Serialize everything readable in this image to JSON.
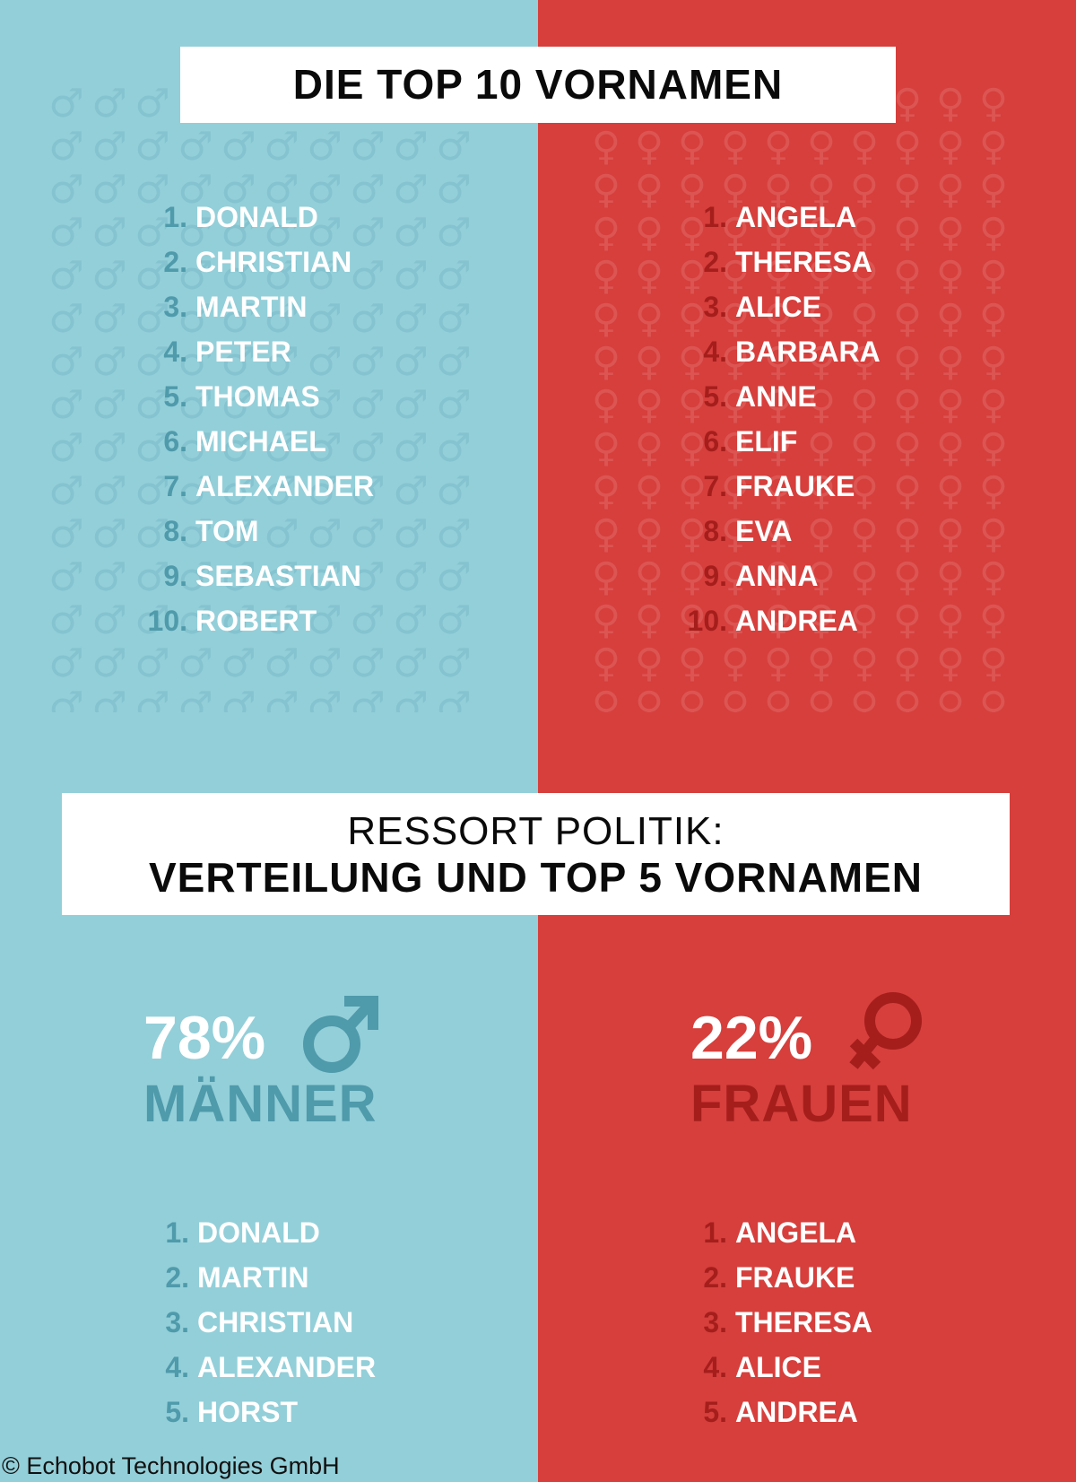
{
  "colors": {
    "male_bg": "#93cfd9",
    "female_bg": "#d63f3c",
    "male_accent": "#4f9aab",
    "female_accent": "#a51e1c"
  },
  "icons": {
    "male": "male-symbol-icon",
    "female": "female-symbol-icon"
  },
  "top10": {
    "title": "DIE TOP 10 VORNAMEN",
    "male": [
      {
        "num": "1.",
        "name": "DONALD"
      },
      {
        "num": "2.",
        "name": "CHRISTIAN"
      },
      {
        "num": "3.",
        "name": "MARTIN"
      },
      {
        "num": "4.",
        "name": "PETER"
      },
      {
        "num": "5.",
        "name": "THOMAS"
      },
      {
        "num": "6.",
        "name": "MICHAEL"
      },
      {
        "num": "7.",
        "name": "ALEXANDER"
      },
      {
        "num": "8.",
        "name": "TOM"
      },
      {
        "num": "9.",
        "name": "SEBASTIAN"
      },
      {
        "num": "10.",
        "name": "ROBERT"
      }
    ],
    "female": [
      {
        "num": "1.",
        "name": "ANGELA"
      },
      {
        "num": "2.",
        "name": "THERESA"
      },
      {
        "num": "3.",
        "name": "ALICE"
      },
      {
        "num": "4.",
        "name": "BARBARA"
      },
      {
        "num": "5.",
        "name": "ANNE"
      },
      {
        "num": "6.",
        "name": "ELIF"
      },
      {
        "num": "7.",
        "name": "FRAUKE"
      },
      {
        "num": "8.",
        "name": "EVA"
      },
      {
        "num": "9.",
        "name": "ANNA"
      },
      {
        "num": "10.",
        "name": "ANDREA"
      }
    ]
  },
  "politik": {
    "title_line1": "RESSORT POLITIK:",
    "title_line2": "VERTEILUNG UND TOP 5 VORNAMEN",
    "male_percent": "78%",
    "male_label": "MÄNNER",
    "female_percent": "22%",
    "female_label": "FRAUEN",
    "male": [
      {
        "num": "1.",
        "name": "DONALD"
      },
      {
        "num": "2.",
        "name": "MARTIN"
      },
      {
        "num": "3.",
        "name": "CHRISTIAN"
      },
      {
        "num": "4.",
        "name": "ALEXANDER"
      },
      {
        "num": "5.",
        "name": "HORST"
      }
    ],
    "female": [
      {
        "num": "1.",
        "name": "ANGELA"
      },
      {
        "num": "2.",
        "name": "FRAUKE"
      },
      {
        "num": "3.",
        "name": "THERESA"
      },
      {
        "num": "4.",
        "name": "ALICE"
      },
      {
        "num": "5.",
        "name": "ANDREA"
      }
    ]
  },
  "copyright": "© Echobot Technologies GmbH"
}
